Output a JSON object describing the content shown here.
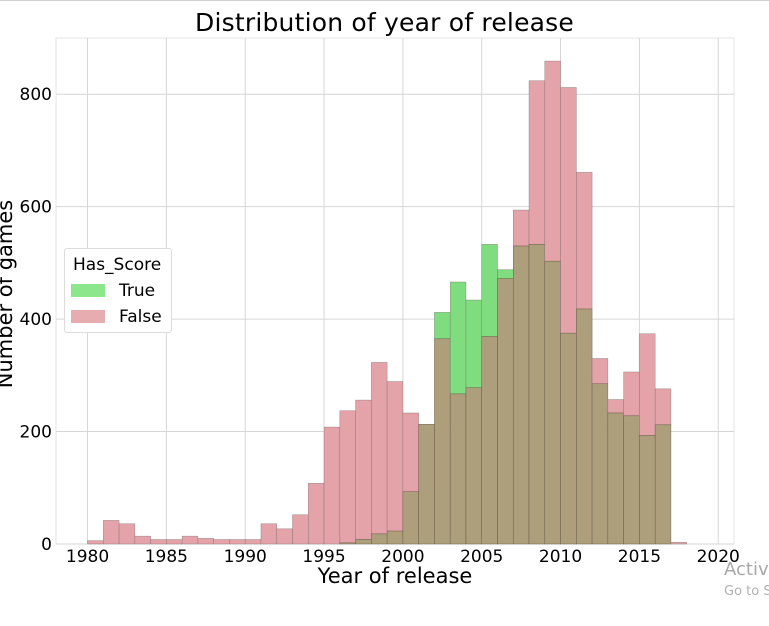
{
  "chart_data": {
    "type": "bar",
    "title": "Distribution of year of release",
    "xlabel": "Year of release",
    "ylabel": "Number of games",
    "xlim": [
      1978,
      2021
    ],
    "ylim": [
      0,
      900
    ],
    "xticks": [
      1980,
      1985,
      1990,
      1995,
      2000,
      2005,
      2010,
      2015,
      2020
    ],
    "yticks": [
      0,
      200,
      400,
      600,
      800
    ],
    "grid": true,
    "legend": {
      "title": "Has_Score",
      "placement": "center-left"
    },
    "bins": [
      1980,
      1981,
      1982,
      1983,
      1984,
      1985,
      1986,
      1987,
      1988,
      1989,
      1990,
      1991,
      1992,
      1993,
      1994,
      1995,
      1996,
      1997,
      1998,
      1999,
      2000,
      2001,
      2002,
      2003,
      2004,
      2005,
      2006,
      2007,
      2008,
      2009,
      2010,
      2011,
      2012,
      2013,
      2014,
      2015,
      2016,
      2017
    ],
    "series": [
      {
        "name": "True",
        "color": "#7fdc7f",
        "values": [
          0,
          0,
          0,
          0,
          0,
          0,
          0,
          0,
          0,
          0,
          0,
          0,
          0,
          0,
          0,
          0,
          2,
          8,
          18,
          23,
          93,
          213,
          412,
          466,
          434,
          533,
          488,
          530,
          533,
          503,
          375,
          418,
          285,
          233,
          228,
          193,
          212,
          0
        ]
      },
      {
        "name": "False",
        "color": "#e3a3a8",
        "values": [
          6,
          42,
          36,
          14,
          8,
          8,
          14,
          10,
          8,
          8,
          8,
          36,
          27,
          52,
          108,
          208,
          237,
          256,
          323,
          289,
          233,
          213,
          365,
          267,
          278,
          369,
          472,
          594,
          824,
          859,
          812,
          661,
          330,
          257,
          306,
          374,
          276,
          3
        ]
      }
    ],
    "overlap_color": "#ad9f7b"
  },
  "watermark": {
    "line1": "Activ",
    "line2": "Go to S"
  }
}
